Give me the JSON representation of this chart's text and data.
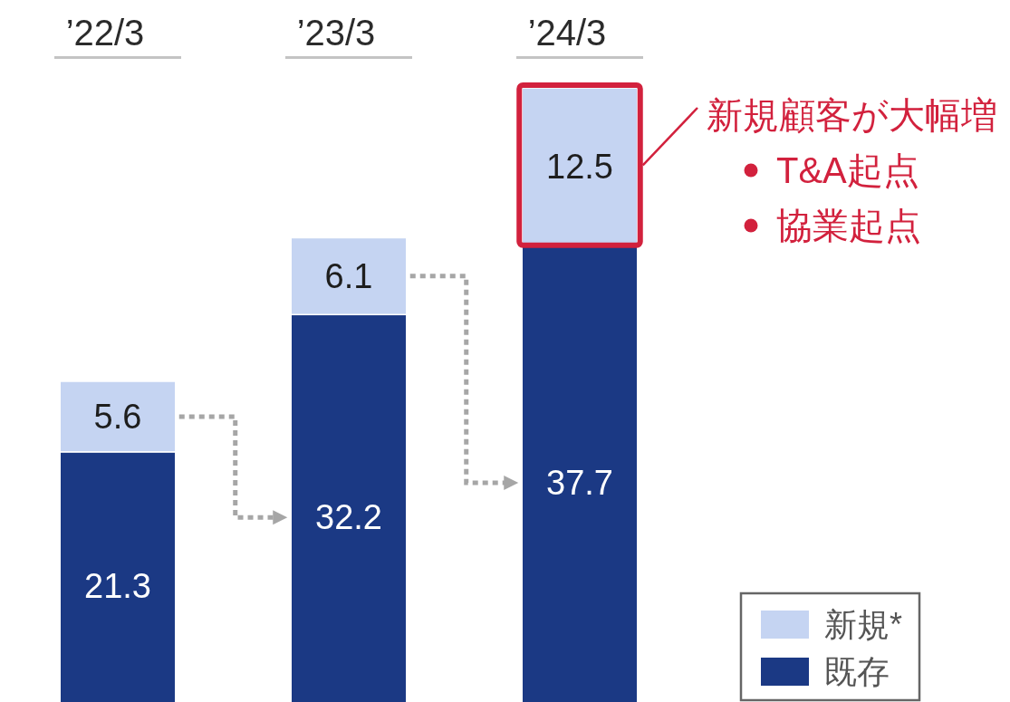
{
  "chart_data": {
    "type": "bar",
    "stacked": true,
    "categories": [
      "’22/3",
      "’23/3",
      "’24/3"
    ],
    "series": [
      {
        "name": "既存",
        "color": "#1b3984",
        "values": [
          21.3,
          32.2,
          37.7
        ]
      },
      {
        "name": "新規*",
        "color": "#c5d4f2",
        "values": [
          5.6,
          6.1,
          12.5
        ]
      }
    ],
    "data_labels": true,
    "legend": "bottom right",
    "annotations": [
      "新規顧客が大幅増",
      "T&A起点",
      "協業起点"
    ]
  }
}
